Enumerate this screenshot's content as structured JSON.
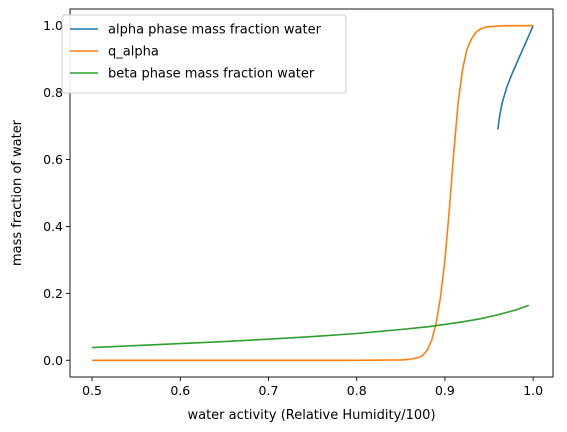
{
  "chart_data": {
    "type": "line",
    "xlabel": "water activity (Relative Humidity/100)",
    "ylabel": "mass fraction of water",
    "xlim": [
      0.475,
      1.0225
    ],
    "ylim": [
      -0.05,
      1.05
    ],
    "xticks": [
      "0.5",
      "0.6",
      "0.7",
      "0.8",
      "0.9",
      "1.0"
    ],
    "yticks": [
      "0.0",
      "0.2",
      "0.4",
      "0.6",
      "0.8",
      "1.0"
    ],
    "legend_position": "top-left",
    "grid": false,
    "series": [
      {
        "name": "alpha phase mass fraction water",
        "color": "#1f77b4",
        "x": [
          0.96,
          0.962,
          0.965,
          0.97,
          0.975,
          0.98,
          0.985,
          0.99,
          0.995,
          1.0
        ],
        "y": [
          0.69,
          0.73,
          0.77,
          0.815,
          0.85,
          0.88,
          0.91,
          0.94,
          0.97,
          1.0
        ]
      },
      {
        "name": "q_alpha",
        "color": "#ff7f0e",
        "x": [
          0.5,
          0.6,
          0.7,
          0.8,
          0.85,
          0.86,
          0.87,
          0.875,
          0.88,
          0.885,
          0.89,
          0.895,
          0.9,
          0.905,
          0.91,
          0.915,
          0.92,
          0.925,
          0.93,
          0.935,
          0.94,
          0.945,
          0.95,
          0.96,
          0.97,
          0.98,
          1.0
        ],
        "y": [
          0.0,
          0.0,
          0.0,
          0.0,
          0.001,
          0.003,
          0.008,
          0.015,
          0.03,
          0.06,
          0.11,
          0.19,
          0.3,
          0.45,
          0.62,
          0.77,
          0.87,
          0.93,
          0.96,
          0.98,
          0.99,
          0.995,
          0.997,
          0.999,
          1.0,
          1.0,
          1.0
        ]
      },
      {
        "name": "beta phase mass fraction water",
        "color": "#2ca02c",
        "x": [
          0.5,
          0.55,
          0.6,
          0.65,
          0.7,
          0.75,
          0.8,
          0.85,
          0.88,
          0.9,
          0.92,
          0.94,
          0.96,
          0.98,
          0.995
        ],
        "y": [
          0.038,
          0.044,
          0.05,
          0.056,
          0.063,
          0.071,
          0.08,
          0.092,
          0.1,
          0.107,
          0.115,
          0.124,
          0.136,
          0.15,
          0.164
        ]
      }
    ]
  }
}
